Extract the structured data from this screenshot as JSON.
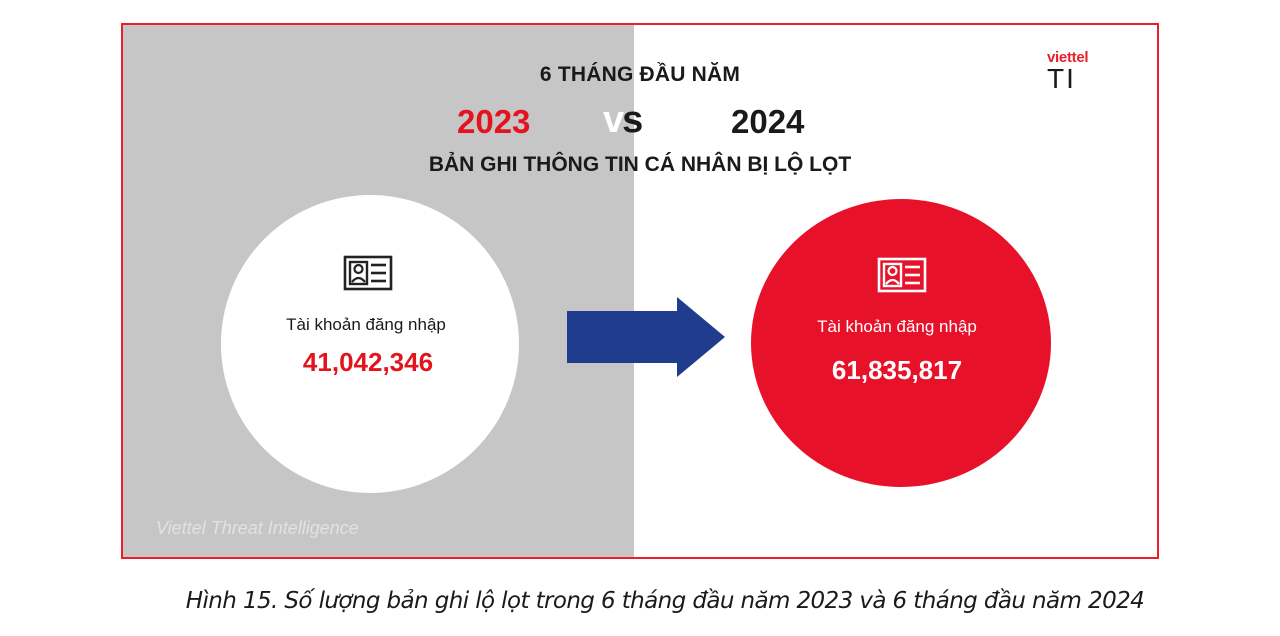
{
  "infographic": {
    "title": "6 THÁNG ĐẦU NĂM",
    "year_left": "2023",
    "vs_v": "v",
    "vs_s": "s",
    "year_right": "2024",
    "subtitle": "BẢN GHI THÔNG TIN CÁ NHÂN BỊ LỘ LỌT",
    "logo": {
      "brand": "viettel",
      "product": "TI"
    },
    "left": {
      "icon": "id-card-icon",
      "label": "Tài khoản đăng nhập",
      "value": "41,042,346"
    },
    "right": {
      "icon": "id-card-icon",
      "label": "Tài khoản đăng nhập",
      "value": "61,835,817"
    },
    "arrow_icon": "arrow-right-icon",
    "watermark": "Viettel Threat Intelligence",
    "colors": {
      "accent_red": "#e8112a",
      "arrow_blue": "#1f3d8c",
      "left_bg": "#c6c6c6"
    }
  },
  "caption": "Hình 15. Số lượng bản ghi lộ lọt trong 6 tháng đầu năm 2023 và 6 tháng đầu năm 2024"
}
